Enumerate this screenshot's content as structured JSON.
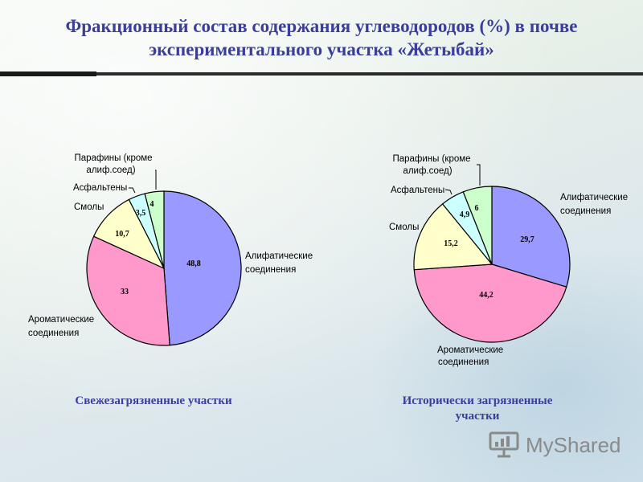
{
  "title": "Фракционный состав содержания углеводородов (%) в почве экспериментального участка «Жетыбай»",
  "logo": "MyShared",
  "chart_data": [
    {
      "type": "pie",
      "caption": "Свежезагрязненные участки",
      "slices": [
        {
          "label": "Алифатические соединения",
          "value": 48.8,
          "value_label": "48,8",
          "color": "#9999ff"
        },
        {
          "label": "Ароматические соединения",
          "value": 33,
          "value_label": "33",
          "color": "#ff99cc"
        },
        {
          "label": "Смолы",
          "value": 10.7,
          "value_label": "10,7",
          "color": "#ffffcc"
        },
        {
          "label": "Асфальтены",
          "value": 3.5,
          "value_label": "3,5",
          "color": "#ccffff"
        },
        {
          "label": "Парафины (кроме алиф.соед)",
          "value": 4,
          "value_label": "4",
          "color": "#ccffcc"
        }
      ]
    },
    {
      "type": "pie",
      "caption": "Исторически загрязненные участки",
      "slices": [
        {
          "label": "Алифатические соединения",
          "value": 29.7,
          "value_label": "29,7",
          "color": "#9999ff"
        },
        {
          "label": "Ароматические соединения",
          "value": 44.2,
          "value_label": "44,2",
          "color": "#ff99cc"
        },
        {
          "label": "Смолы",
          "value": 15.2,
          "value_label": "15,2",
          "color": "#ffffcc"
        },
        {
          "label": "Асфальтены",
          "value": 4.9,
          "value_label": "4,9",
          "color": "#ccffff"
        },
        {
          "label": "Парафины (кроме алиф.соед)",
          "value": 6,
          "value_label": "6",
          "color": "#ccffcc"
        }
      ]
    }
  ]
}
